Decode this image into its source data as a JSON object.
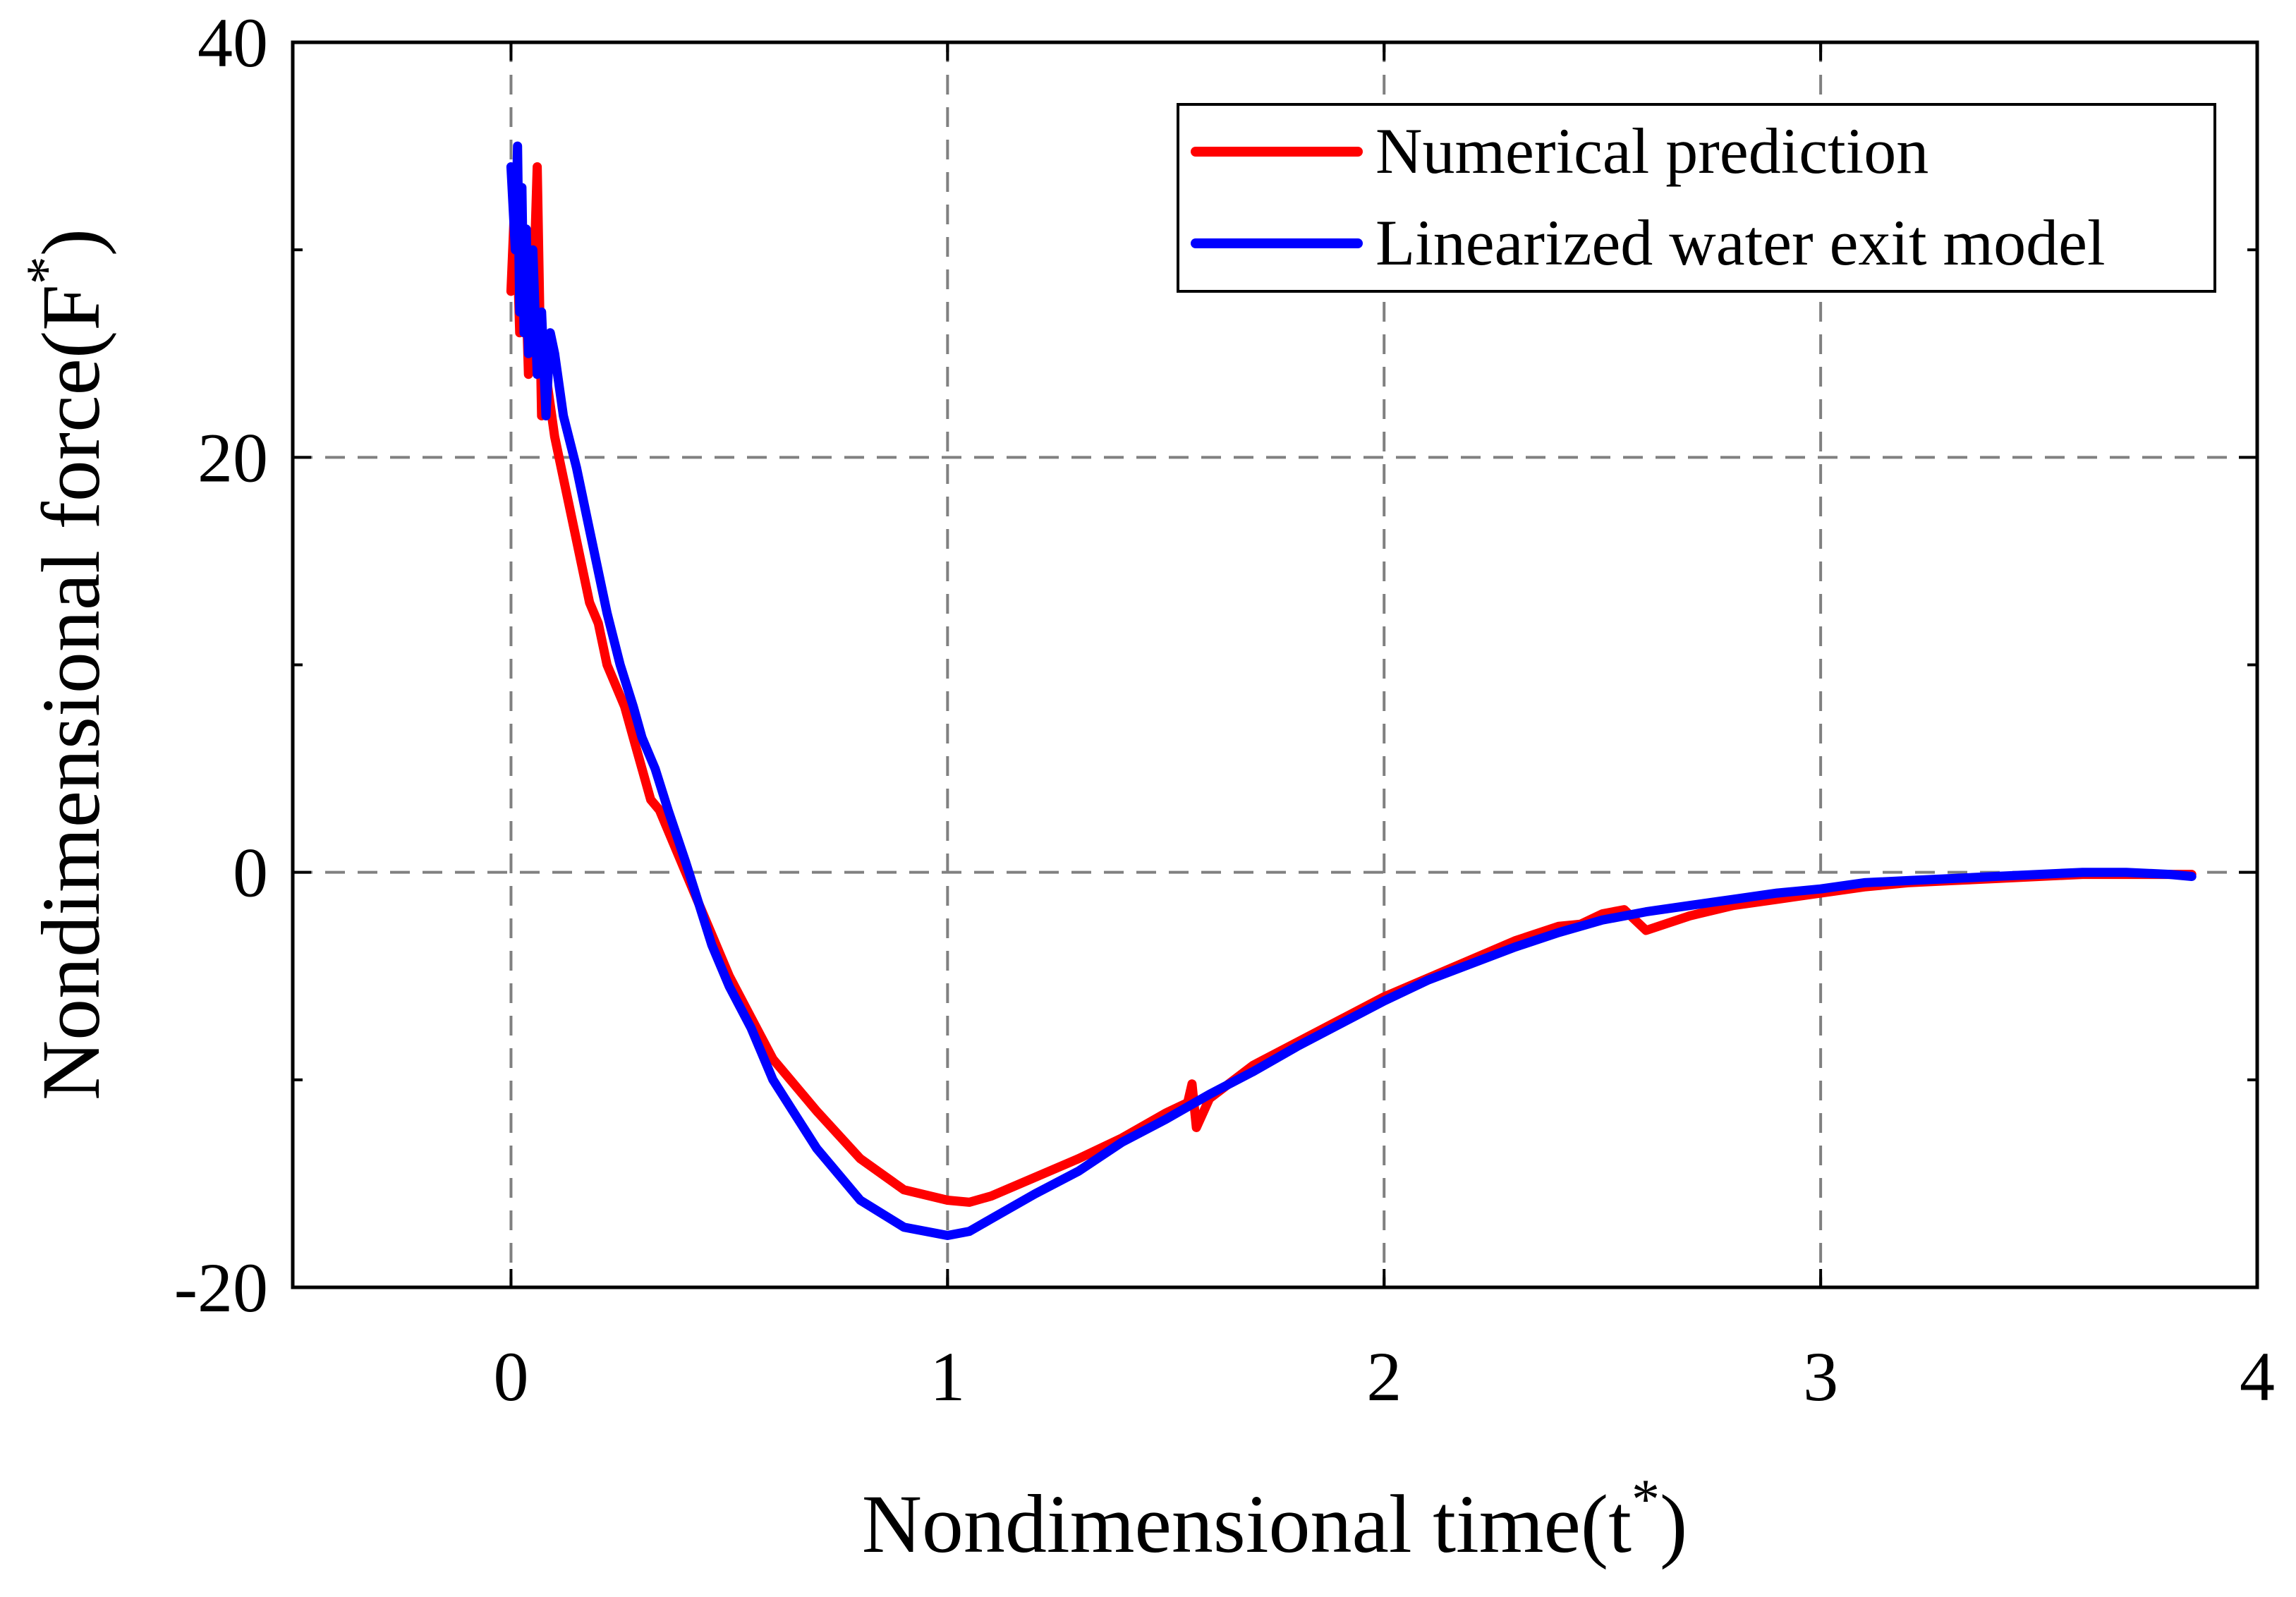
{
  "chart_data": {
    "type": "line",
    "title": "",
    "xlabel": "Nondimensional time(t",
    "xlabel_sup": "*",
    "xlabel_close": ")",
    "ylabel": "Nondimensional force(F",
    "ylabel_sup": "*",
    "ylabel_close": ")",
    "xlim": [
      -0.5,
      4
    ],
    "ylim": [
      -20,
      40
    ],
    "xticks": [
      0,
      1,
      2,
      3,
      4
    ],
    "yticks": [
      -20,
      0,
      20,
      40
    ],
    "xtick_labels": [
      "0",
      "1",
      "2",
      "3",
      "4"
    ],
    "ytick_labels": [
      "-20",
      "0",
      "20",
      "40"
    ],
    "grid": true,
    "legend_position": "top-right",
    "series": [
      {
        "name": "Numerical prediction",
        "color": "#ff0000",
        "x": [
          0.0,
          0.01,
          0.02,
          0.03,
          0.04,
          0.05,
          0.06,
          0.07,
          0.08,
          0.1,
          0.12,
          0.15,
          0.18,
          0.2,
          0.22,
          0.24,
          0.26,
          0.28,
          0.3,
          0.32,
          0.34,
          0.37,
          0.4,
          0.45,
          0.5,
          0.55,
          0.6,
          0.7,
          0.8,
          0.9,
          1.0,
          1.05,
          1.1,
          1.2,
          1.3,
          1.4,
          1.5,
          1.55,
          1.56,
          1.57,
          1.6,
          1.7,
          1.8,
          1.9,
          2.0,
          2.1,
          2.2,
          2.3,
          2.4,
          2.45,
          2.5,
          2.55,
          2.6,
          2.7,
          2.8,
          2.9,
          3.0,
          3.1,
          3.2,
          3.3,
          3.4,
          3.5,
          3.6,
          3.7,
          3.8,
          3.85
        ],
        "y": [
          28.0,
          33.0,
          26.0,
          31.0,
          24.0,
          27.0,
          34.0,
          22.0,
          24.0,
          21.0,
          19.0,
          16.0,
          13.0,
          12.0,
          10.0,
          9.0,
          8.0,
          6.5,
          5.0,
          3.5,
          3.0,
          1.5,
          0.0,
          -2.5,
          -5.0,
          -7.0,
          -9.0,
          -11.5,
          -13.8,
          -15.3,
          -15.8,
          -15.9,
          -15.6,
          -14.7,
          -13.8,
          -12.8,
          -11.6,
          -11.1,
          -10.2,
          -12.3,
          -10.9,
          -9.3,
          -8.2,
          -7.1,
          -6.0,
          -5.1,
          -4.2,
          -3.3,
          -2.6,
          -2.5,
          -2.0,
          -1.8,
          -2.8,
          -2.1,
          -1.6,
          -1.3,
          -1.0,
          -0.7,
          -0.5,
          -0.4,
          -0.3,
          -0.2,
          -0.1,
          -0.1,
          -0.1,
          -0.1
        ]
      },
      {
        "name": "Linearized water exit model",
        "color": "#0000ff",
        "x": [
          0.0,
          0.01,
          0.015,
          0.02,
          0.025,
          0.03,
          0.035,
          0.04,
          0.05,
          0.06,
          0.07,
          0.08,
          0.09,
          0.1,
          0.12,
          0.15,
          0.18,
          0.2,
          0.22,
          0.25,
          0.28,
          0.3,
          0.33,
          0.36,
          0.4,
          0.43,
          0.46,
          0.5,
          0.55,
          0.6,
          0.7,
          0.8,
          0.9,
          1.0,
          1.05,
          1.1,
          1.2,
          1.3,
          1.4,
          1.5,
          1.6,
          1.7,
          1.8,
          1.9,
          2.0,
          2.1,
          2.2,
          2.3,
          2.4,
          2.5,
          2.6,
          2.7,
          2.8,
          2.9,
          3.0,
          3.1,
          3.2,
          3.3,
          3.4,
          3.5,
          3.6,
          3.7,
          3.8,
          3.85
        ],
        "y": [
          34.0,
          30.0,
          35.0,
          27.0,
          33.0,
          26.0,
          31.0,
          25.0,
          30.0,
          24.0,
          27.0,
          22.0,
          26.0,
          25.0,
          22.0,
          19.5,
          16.5,
          14.5,
          12.5,
          10.0,
          8.0,
          6.5,
          5.0,
          3.0,
          0.5,
          -1.5,
          -3.5,
          -5.5,
          -7.5,
          -10.0,
          -13.3,
          -15.8,
          -17.1,
          -17.5,
          -17.3,
          -16.7,
          -15.5,
          -14.4,
          -13.0,
          -11.9,
          -10.7,
          -9.6,
          -8.4,
          -7.3,
          -6.2,
          -5.2,
          -4.4,
          -3.6,
          -2.9,
          -2.3,
          -1.9,
          -1.6,
          -1.3,
          -1.0,
          -0.8,
          -0.5,
          -0.4,
          -0.3,
          -0.2,
          -0.1,
          0.0,
          0.0,
          -0.1,
          -0.2
        ]
      }
    ]
  }
}
